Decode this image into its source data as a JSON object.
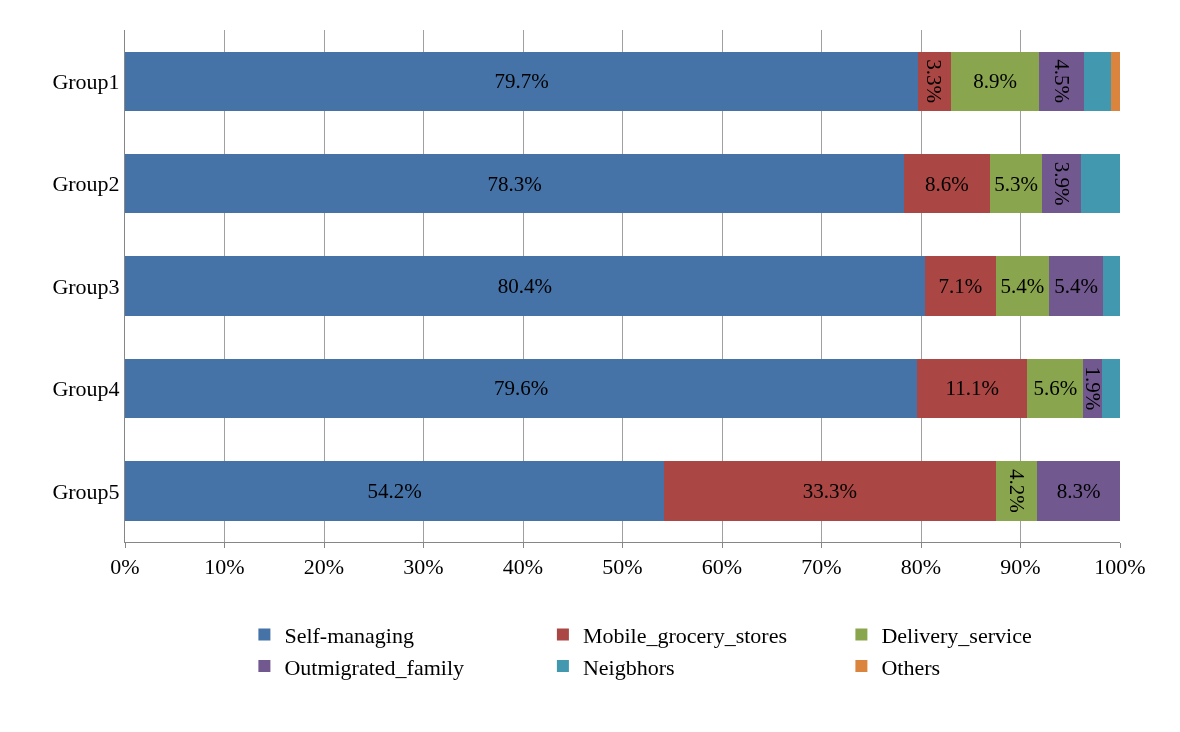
{
  "chart_data": {
    "type": "bar",
    "orientation": "horizontal",
    "stacked": true,
    "categories": [
      "Group1",
      "Group2",
      "Group3",
      "Group4",
      "Group5"
    ],
    "series": [
      {
        "name": "Self-managing",
        "color": "#4572a7",
        "values": [
          79.7,
          78.3,
          80.4,
          79.6,
          54.2
        ],
        "value_labels": [
          "79.7%",
          "78.3%",
          "80.4%",
          "79.6%",
          "54.2%"
        ]
      },
      {
        "name": "Mobile_grocery_stores",
        "color": "#aa4643",
        "values": [
          3.3,
          8.6,
          7.1,
          11.1,
          33.3
        ],
        "value_labels": [
          "3.3%",
          "8.6%",
          "7.1%",
          "11.1%",
          "33.3%"
        ]
      },
      {
        "name": "Delivery_service",
        "color": "#89a54e",
        "values": [
          8.9,
          5.3,
          5.4,
          5.6,
          4.2
        ],
        "value_labels": [
          "8.9%",
          "5.3%",
          "5.4%",
          "5.6%",
          "4.2%"
        ]
      },
      {
        "name": "Outmigrated_family",
        "color": "#71588f",
        "values": [
          4.5,
          3.9,
          5.4,
          1.9,
          8.3
        ],
        "value_labels": [
          "4.5%",
          "3.9%",
          "5.4%",
          "1.9%",
          "8.3%"
        ]
      },
      {
        "name": "Neigbhors",
        "color": "#4198af",
        "values": [
          2.7,
          3.9,
          1.7,
          1.8,
          null
        ]
      },
      {
        "name": "Others",
        "color": "#db843d",
        "values": [
          0.9,
          null,
          null,
          null,
          null
        ]
      }
    ],
    "xlim": [
      0,
      100
    ],
    "xticks": [
      {
        "value": 0,
        "label": "0%"
      },
      {
        "value": 10,
        "label": "10%"
      },
      {
        "value": 20,
        "label": "20%"
      },
      {
        "value": 30,
        "label": "30%"
      },
      {
        "value": 40,
        "label": "40%"
      },
      {
        "value": 50,
        "label": "50%"
      },
      {
        "value": 60,
        "label": "60%"
      },
      {
        "value": 70,
        "label": "70%"
      },
      {
        "value": 80,
        "label": "80%"
      },
      {
        "value": 90,
        "label": "90%"
      },
      {
        "value": 100,
        "label": "100%"
      }
    ],
    "grid": "x",
    "legend": "bottom"
  }
}
